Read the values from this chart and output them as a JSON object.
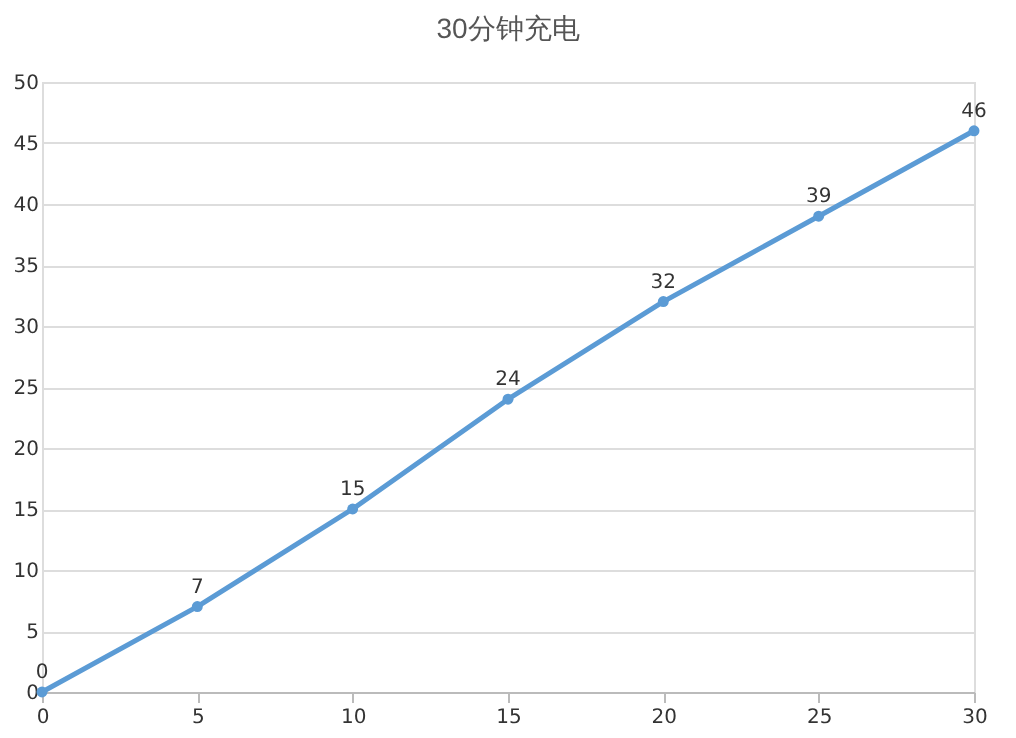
{
  "chart_data": {
    "type": "line",
    "title": "30分钟充电",
    "x": [
      0,
      5,
      10,
      15,
      20,
      25,
      30
    ],
    "series": [
      {
        "color": "#5b9bd5",
        "values": [
          0,
          7,
          15,
          24,
          32,
          39,
          46
        ]
      }
    ],
    "xlim": [
      0,
      30
    ],
    "xticks": [
      0,
      5,
      10,
      15,
      20,
      25,
      30
    ],
    "ylim": [
      0,
      50
    ],
    "yticks": [
      0,
      5,
      10,
      15,
      20,
      25,
      30,
      35,
      40,
      45,
      50
    ],
    "grid": "y",
    "marker": "circle",
    "line_style": "solid",
    "data_labels": true
  }
}
